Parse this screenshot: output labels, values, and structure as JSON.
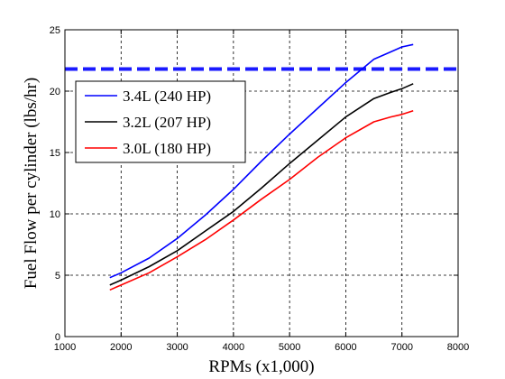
{
  "chart_data": {
    "type": "line",
    "title": "",
    "xlabel": "RPMs (x1,000)",
    "ylabel": "Fuel Flow per cylinder (lbs/hr)",
    "xlim": [
      1000,
      8000
    ],
    "ylim": [
      0,
      25
    ],
    "xticks": [
      1000,
      2000,
      3000,
      4000,
      5000,
      6000,
      7000,
      8000
    ],
    "yticks": [
      0,
      5,
      10,
      15,
      20,
      25
    ],
    "xtick_labels": [
      "1000",
      "2000",
      "3000",
      "4000",
      "5000",
      "6000",
      "7000",
      "8000"
    ],
    "ytick_labels": [
      "0",
      "5",
      "10",
      "15",
      "20",
      "25"
    ],
    "grid": true,
    "legend_position": "upper-left",
    "reference_line": {
      "y": 21.8,
      "style": "dashed",
      "color": "#1a1aff"
    },
    "series": [
      {
        "name": "3.4L (240 HP)",
        "color": "#0000ff",
        "x": [
          1800,
          2000,
          2500,
          3000,
          3500,
          4000,
          4500,
          5000,
          5500,
          6000,
          6500,
          6800,
          7000,
          7200
        ],
        "y": [
          4.8,
          5.2,
          6.4,
          8.0,
          9.9,
          12.0,
          14.3,
          16.5,
          18.6,
          20.7,
          22.6,
          23.2,
          23.6,
          23.8
        ]
      },
      {
        "name": "3.2L (207 HP)",
        "color": "#000000",
        "x": [
          1800,
          2000,
          2500,
          3000,
          3500,
          4000,
          4500,
          5000,
          5500,
          6000,
          6500,
          6800,
          7000,
          7200
        ],
        "y": [
          4.2,
          4.6,
          5.7,
          7.0,
          8.6,
          10.2,
          12.1,
          14.1,
          16.0,
          17.9,
          19.4,
          19.9,
          20.2,
          20.6
        ]
      },
      {
        "name": "3.0L (180 HP)",
        "color": "#ff0000",
        "x": [
          1800,
          2000,
          2500,
          3000,
          3500,
          4000,
          4500,
          5000,
          5500,
          6000,
          6500,
          6800,
          7000,
          7200
        ],
        "y": [
          3.8,
          4.2,
          5.2,
          6.5,
          7.9,
          9.5,
          11.2,
          12.8,
          14.6,
          16.2,
          17.5,
          17.9,
          18.1,
          18.4
        ]
      }
    ]
  }
}
